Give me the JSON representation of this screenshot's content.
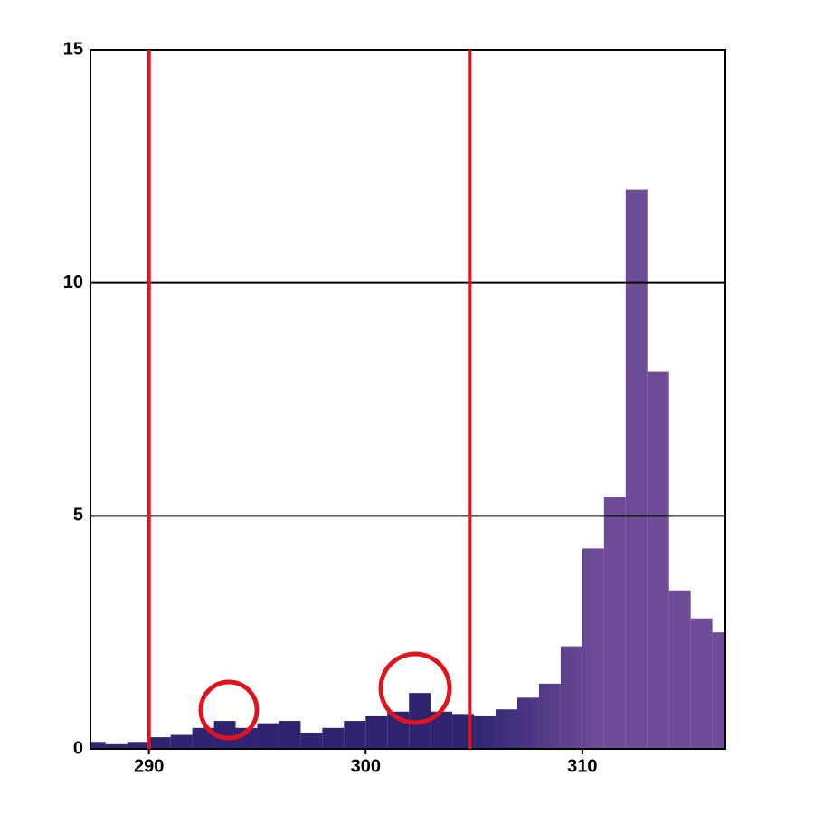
{
  "chart_data": {
    "type": "histogram",
    "bins": [
      287,
      288,
      289,
      290,
      291,
      292,
      293,
      294,
      295,
      296,
      297,
      298,
      299,
      300,
      301,
      302,
      303,
      304,
      305,
      306,
      307,
      308,
      309,
      310,
      311,
      312,
      313,
      314,
      315,
      316,
      317
    ],
    "values": [
      0.15,
      0.1,
      0.15,
      0.25,
      0.3,
      0.45,
      0.6,
      0.45,
      0.55,
      0.6,
      0.35,
      0.45,
      0.6,
      0.7,
      0.8,
      1.2,
      0.8,
      0.75,
      0.7,
      0.85,
      1.1,
      1.4,
      2.2,
      4.3,
      5.4,
      12,
      8.1,
      3.4,
      2.8,
      2.5
    ],
    "colors": [
      "#2e2470",
      "#6e4c98"
    ],
    "xlim": [
      287.3,
      316.6
    ],
    "xticks": [
      290,
      300,
      310
    ],
    "ylim": [
      0,
      15
    ],
    "yticks": [
      0,
      5,
      10,
      15
    ],
    "grid": true,
    "vlines": [
      290,
      304.8
    ],
    "vline_color": "#e0141e"
  }
}
